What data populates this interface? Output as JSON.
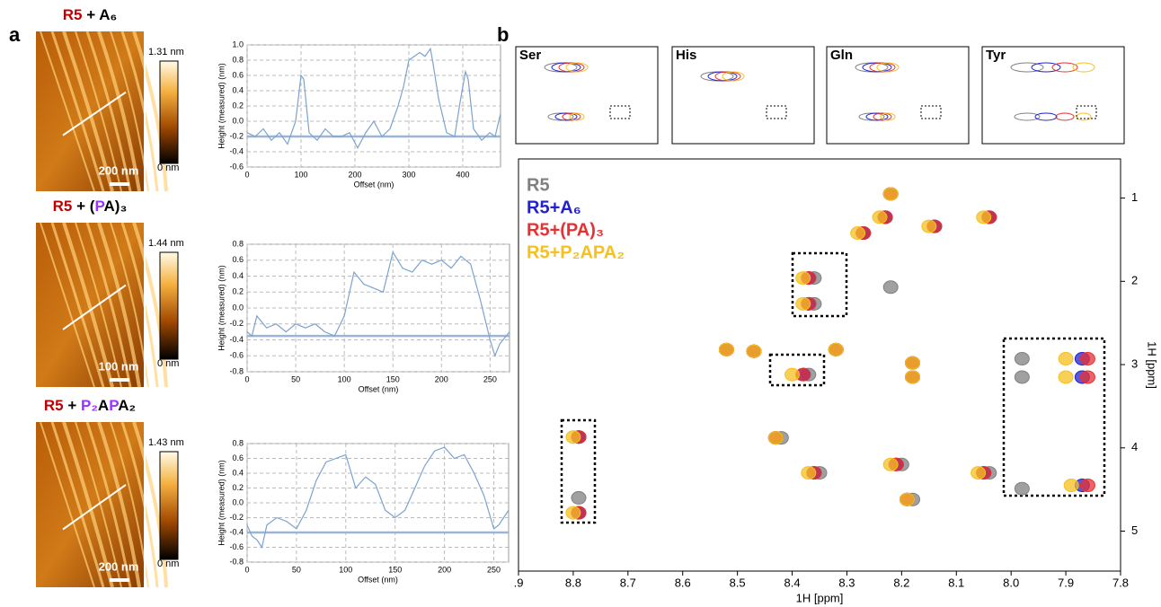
{
  "panel_labels": [
    "a",
    "b"
  ],
  "afm": [
    {
      "title": [
        {
          "text": "R5",
          "color": "#c00000"
        },
        {
          "text": " + A₆"
        }
      ],
      "max": "1.31 nm",
      "min": "0 nm",
      "scale": "200 nm"
    },
    {
      "title": [
        {
          "text": "R5",
          "color": "#c00000"
        },
        {
          "text": " + ("
        },
        {
          "text": "P",
          "color": "#9933ff"
        },
        {
          "text": "A)₃"
        }
      ],
      "max": "1.44 nm",
      "min": "0 nm",
      "scale": "100 nm"
    },
    {
      "title": [
        {
          "text": "R5",
          "color": "#c00000"
        },
        {
          "text": " + "
        },
        {
          "text": "P₂",
          "color": "#9933ff"
        },
        {
          "text": "A"
        },
        {
          "text": "P",
          "color": "#9933ff"
        },
        {
          "text": "A₂"
        }
      ],
      "max": "1.43 nm",
      "min": "0 nm",
      "scale": "200 nm"
    }
  ],
  "insets": [
    "Ser",
    "His",
    "Gln",
    "Tyr"
  ],
  "chart_data": [
    {
      "type": "line",
      "xlabel": "Offset (nm)",
      "ylabel": "Height (measured) (nm)",
      "grid": true,
      "color": "#7ba3cf",
      "xlim": [
        0,
        470
      ],
      "xticks": [
        0,
        100,
        200,
        300,
        400
      ],
      "ylim": [
        -0.6,
        1.0
      ],
      "yticks": [
        {
          "value": 1.0,
          "label": "1.0"
        },
        0.8,
        0.6,
        0.4,
        0.2,
        {
          "value": 0,
          "label": "0.0"
        },
        -0.2,
        -0.4,
        -0.6
      ],
      "reference_line": -0.2,
      "x": [
        0,
        15,
        30,
        45,
        60,
        75,
        90,
        100,
        105,
        115,
        130,
        145,
        160,
        175,
        190,
        205,
        220,
        235,
        250,
        265,
        280,
        290,
        300,
        310,
        320,
        330,
        340,
        345,
        355,
        370,
        385,
        395,
        405,
        410,
        420,
        435,
        450,
        460,
        470
      ],
      "values": [
        -0.15,
        -0.2,
        -0.1,
        -0.25,
        -0.15,
        -0.3,
        0.0,
        0.6,
        0.55,
        -0.15,
        -0.25,
        -0.1,
        -0.2,
        -0.2,
        -0.15,
        -0.35,
        -0.15,
        0.0,
        -0.2,
        -0.1,
        0.2,
        0.45,
        0.8,
        0.85,
        0.9,
        0.85,
        0.95,
        0.75,
        0.3,
        -0.15,
        -0.2,
        0.25,
        0.65,
        0.55,
        -0.1,
        -0.25,
        -0.15,
        -0.2,
        0.1
      ]
    },
    {
      "type": "line",
      "xlabel": "Offset (nm)",
      "ylabel": "Height (measured) (nm)",
      "grid": true,
      "color": "#7ba3cf",
      "xlim": [
        0,
        270
      ],
      "xticks": [
        0,
        50,
        100,
        150,
        200,
        250
      ],
      "ylim": [
        -0.8,
        0.8
      ],
      "yticks": [
        0.8,
        0.6,
        0.4,
        0.2,
        {
          "value": 0,
          "label": "0.0"
        },
        -0.2,
        -0.4,
        -0.6,
        -0.8
      ],
      "reference_line": -0.35,
      "x": [
        0,
        5,
        10,
        20,
        30,
        40,
        50,
        60,
        70,
        80,
        90,
        100,
        110,
        120,
        130,
        140,
        150,
        160,
        170,
        180,
        190,
        200,
        210,
        220,
        230,
        240,
        250,
        255,
        260,
        270
      ],
      "values": [
        -0.3,
        -0.35,
        -0.1,
        -0.25,
        -0.2,
        -0.3,
        -0.2,
        -0.25,
        -0.2,
        -0.3,
        -0.35,
        -0.1,
        0.45,
        0.3,
        0.25,
        0.2,
        0.7,
        0.5,
        0.45,
        0.6,
        0.55,
        0.6,
        0.5,
        0.65,
        0.55,
        0.1,
        -0.4,
        -0.6,
        -0.45,
        -0.3
      ]
    },
    {
      "type": "line",
      "xlabel": "Offset (nm)",
      "ylabel": "Height (measured) (nm)",
      "grid": true,
      "color": "#7ba3cf",
      "xlim": [
        0,
        265
      ],
      "xticks": [
        0,
        50,
        100,
        150,
        200,
        250
      ],
      "ylim": [
        -0.8,
        0.8
      ],
      "yticks": [
        0.8,
        0.6,
        0.4,
        0.2,
        {
          "value": 0,
          "label": "0.0"
        },
        -0.2,
        -0.4,
        -0.6,
        -0.8
      ],
      "reference_line": -0.4,
      "x": [
        0,
        5,
        10,
        15,
        20,
        30,
        40,
        50,
        60,
        70,
        80,
        90,
        100,
        110,
        120,
        130,
        140,
        150,
        160,
        170,
        180,
        190,
        200,
        210,
        220,
        230,
        240,
        250,
        255,
        260,
        265
      ],
      "values": [
        -0.3,
        -0.45,
        -0.5,
        -0.6,
        -0.3,
        -0.2,
        -0.25,
        -0.35,
        -0.1,
        0.3,
        0.55,
        0.6,
        0.65,
        0.2,
        0.35,
        0.25,
        -0.1,
        -0.2,
        -0.1,
        0.2,
        0.5,
        0.7,
        0.75,
        0.6,
        0.65,
        0.4,
        0.1,
        -0.35,
        -0.3,
        -0.2,
        -0.1
      ]
    },
    {
      "type": "scatter",
      "xlabel": "1H [ppm]",
      "ylabel": "1H [ppm]",
      "xlim": [
        8.9,
        7.8
      ],
      "xticks": [
        {
          "value": 8.9,
          "label": ".9"
        },
        8.8,
        8.7,
        8.6,
        8.5,
        8.4,
        8.3,
        8.2,
        8.1,
        {
          "value": 8.0,
          "label": "8.0"
        },
        7.9,
        7.8
      ],
      "ylim": [
        5.48,
        0.53
      ],
      "yticks": [
        1,
        2,
        3,
        4,
        5
      ],
      "series": [
        {
          "name": "R5",
          "color": "#808080",
          "x": [
            8.22,
            8.23,
            8.04,
            8.14,
            8.27,
            8.36,
            8.36,
            8.52,
            8.47,
            8.32,
            8.18,
            8.18,
            8.37,
            8.42,
            8.79,
            8.79,
            8.35,
            8.2,
            8.04,
            8.18,
            7.98,
            7.98,
            7.98,
            8.22,
            8.79
          ],
          "values": [
            0.95,
            1.23,
            1.23,
            1.34,
            1.42,
            1.96,
            2.27,
            2.82,
            2.84,
            2.82,
            2.98,
            3.15,
            3.12,
            3.88,
            3.87,
            4.78,
            4.3,
            4.2,
            4.3,
            4.62,
            2.93,
            3.15,
            4.49,
            2.07,
            4.6
          ]
        },
        {
          "name": "R5+A₆",
          "color": "#2222cc",
          "x": [
            8.22,
            8.23,
            8.04,
            8.14,
            8.27,
            8.37,
            8.37,
            8.52,
            8.47,
            8.32,
            8.18,
            8.18,
            8.38,
            8.43,
            8.79,
            8.79,
            8.36,
            8.21,
            8.05,
            8.19,
            7.87,
            7.87,
            7.87
          ],
          "values": [
            0.95,
            1.23,
            1.23,
            1.34,
            1.42,
            1.96,
            2.27,
            2.82,
            2.84,
            2.82,
            2.98,
            3.15,
            3.12,
            3.88,
            3.87,
            4.78,
            4.3,
            4.2,
            4.3,
            4.62,
            2.93,
            3.15,
            4.45
          ]
        },
        {
          "name": "R5+(PA)₃",
          "color": "#e83030",
          "x": [
            8.22,
            8.23,
            8.04,
            8.14,
            8.27,
            8.37,
            8.37,
            8.52,
            8.47,
            8.32,
            8.18,
            8.18,
            8.38,
            8.43,
            8.79,
            8.79,
            8.36,
            8.21,
            8.05,
            8.19,
            7.86,
            7.86,
            7.86
          ],
          "values": [
            0.95,
            1.23,
            1.23,
            1.34,
            1.42,
            1.96,
            2.27,
            2.82,
            2.84,
            2.82,
            2.98,
            3.15,
            3.12,
            3.88,
            3.87,
            4.78,
            4.3,
            4.2,
            4.3,
            4.62,
            2.93,
            3.15,
            4.45
          ]
        },
        {
          "name": "R5+P₂APA₂",
          "color": "#f5c020",
          "x": [
            8.22,
            8.24,
            8.05,
            8.15,
            8.28,
            8.38,
            8.38,
            8.52,
            8.47,
            8.32,
            8.18,
            8.18,
            8.4,
            8.43,
            8.8,
            8.8,
            8.37,
            8.22,
            8.06,
            8.19,
            7.9,
            7.9,
            7.89
          ],
          "values": [
            0.95,
            1.23,
            1.23,
            1.34,
            1.42,
            1.96,
            2.27,
            2.82,
            2.84,
            2.82,
            2.98,
            3.15,
            3.12,
            3.88,
            3.87,
            4.78,
            4.3,
            4.2,
            4.3,
            4.62,
            2.93,
            3.15,
            4.45
          ]
        }
      ]
    }
  ]
}
